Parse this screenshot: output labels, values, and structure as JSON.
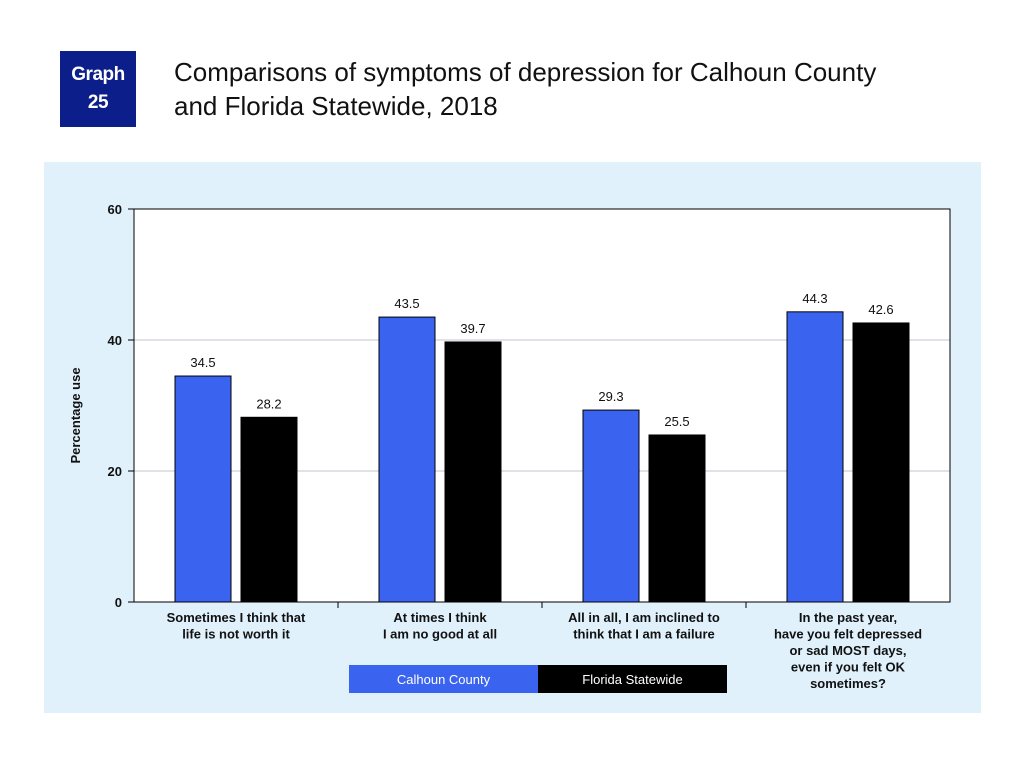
{
  "badge": {
    "line1": "Graph",
    "line2": "25"
  },
  "title_line1": "Comparisons of symptoms of depression for Calhoun County",
  "title_line2": "and Florida Statewide, 2018",
  "colors": {
    "calhoun": "#3a63f0",
    "florida": "#000000",
    "badge": "#0c1e8a",
    "panel": "#e0f1fb"
  },
  "chart_data": {
    "type": "bar",
    "ylabel": "Percentage use",
    "ylim": [
      0,
      60
    ],
    "yticks": [
      0,
      20,
      40,
      60
    ],
    "grid": true,
    "legend_position": "bottom-center",
    "categories": [
      [
        "Sometimes I think that",
        "life is not worth it"
      ],
      [
        "At times I think",
        "I am no good at all"
      ],
      [
        "All in all, I am inclined to",
        "think that I am a failure"
      ],
      [
        "In the past year,",
        "have you felt depressed",
        "or sad MOST days,",
        "even if you felt OK",
        "sometimes?"
      ]
    ],
    "series": [
      {
        "name": "Calhoun County",
        "color": "#3a63f0",
        "values": [
          34.5,
          43.5,
          29.3,
          44.3
        ]
      },
      {
        "name": "Florida Statewide",
        "color": "#000000",
        "values": [
          28.2,
          39.7,
          25.5,
          42.6
        ]
      }
    ]
  }
}
